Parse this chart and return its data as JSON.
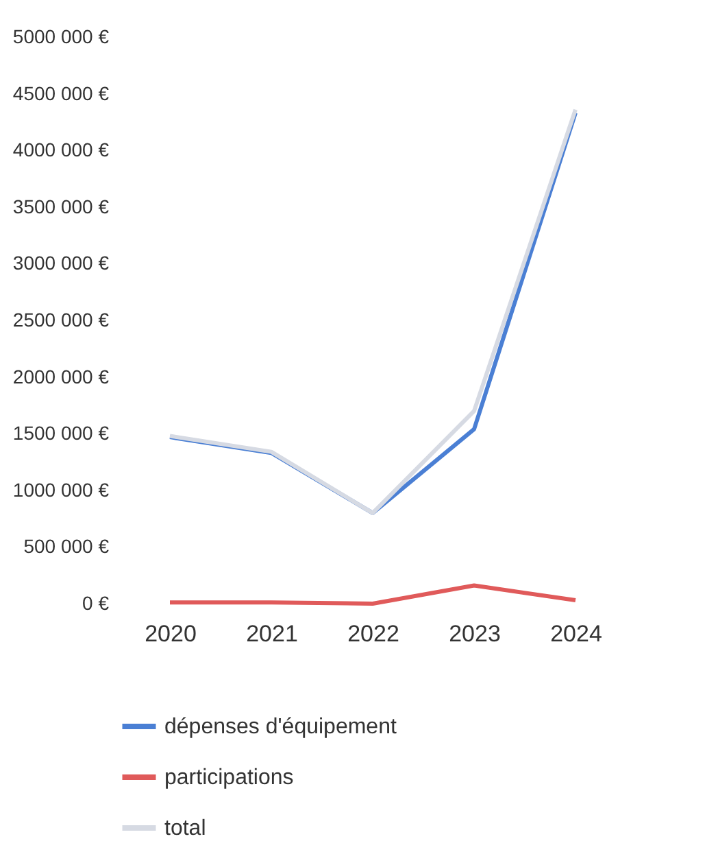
{
  "chart_data": {
    "type": "line",
    "categories": [
      "2020",
      "2021",
      "2022",
      "2023",
      "2024"
    ],
    "series": [
      {
        "name": "dépenses d'équipement",
        "color": "#4a7fd4",
        "values": [
          1470000,
          1330000,
          800000,
          1540000,
          4330000
        ]
      },
      {
        "name": "participations",
        "color": "#e05a5a",
        "values": [
          10000,
          10000,
          0,
          160000,
          30000
        ]
      },
      {
        "name": "total",
        "color": "#d6dae3",
        "values": [
          1480000,
          1340000,
          800000,
          1700000,
          4360000
        ]
      }
    ],
    "ylim": [
      0,
      5000000
    ],
    "yticks": [
      {
        "value": 0,
        "label": "0 €"
      },
      {
        "value": 500000,
        "label": "500 000 €"
      },
      {
        "value": 1000000,
        "label": "1000 000 €"
      },
      {
        "value": 1500000,
        "label": "1500 000 €"
      },
      {
        "value": 2000000,
        "label": "2000 000 €"
      },
      {
        "value": 2500000,
        "label": "2500 000 €"
      },
      {
        "value": 3000000,
        "label": "3000 000 €"
      },
      {
        "value": 3500000,
        "label": "3500 000 €"
      },
      {
        "value": 4000000,
        "label": "4000 000 €"
      },
      {
        "value": 4500000,
        "label": "4500 000 €"
      },
      {
        "value": 5000000,
        "label": "5000 000 €"
      }
    ],
    "grid": false,
    "legend": "bottom",
    "marker": "none",
    "line_style": "solid"
  }
}
